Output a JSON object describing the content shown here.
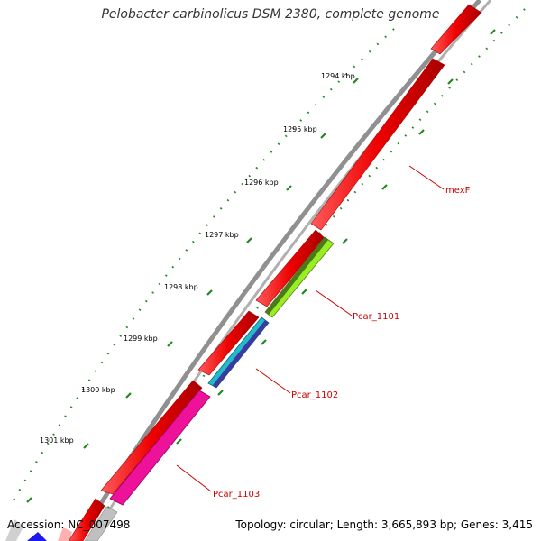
{
  "title": "Pelobacter carbinolicus DSM 2380, complete genome",
  "accession": "Accession: NC_007498",
  "topology": "Topology: circular; Length: 3,665,893 bp; Genes: 3,415",
  "kbp_labels": [
    "1294 kbp",
    "1295 kbp",
    "1296 kbp",
    "1297 kbp",
    "1298 kbp",
    "1299 kbp",
    "1300 kbp",
    "1301 kbp"
  ],
  "gene_labels": [
    "mexF",
    "Pcar_1101",
    "Pcar_1102",
    "Pcar_1103"
  ],
  "colors": {
    "backbone": "#8c8c8c",
    "cds": "#ee0000",
    "pcar_1101": "#99ee22",
    "pcar_1102": "#22bbcc",
    "pcar_1103": "#ee1199",
    "tick": "#228822",
    "label": "#cc0000"
  }
}
